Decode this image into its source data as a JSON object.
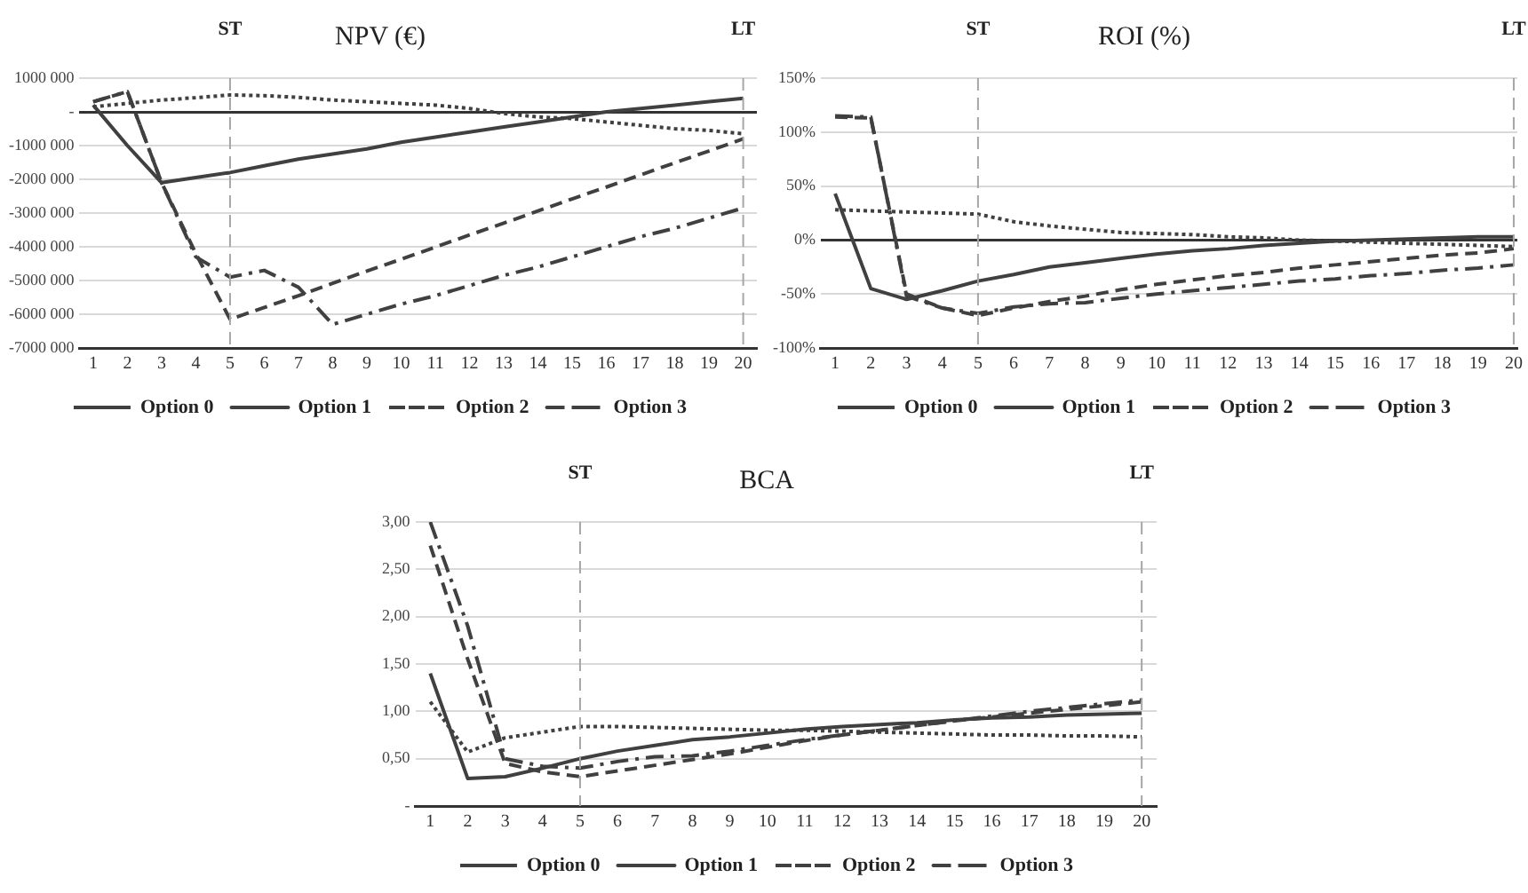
{
  "chart_data": [
    {
      "type": "line",
      "title": "NPV (€)",
      "x": [
        1,
        2,
        3,
        4,
        5,
        6,
        7,
        8,
        9,
        10,
        11,
        12,
        13,
        14,
        15,
        16,
        17,
        18,
        19,
        20
      ],
      "xlim": [
        0.6,
        20.4
      ],
      "xticks": [
        1,
        2,
        3,
        4,
        5,
        6,
        7,
        8,
        9,
        10,
        11,
        12,
        13,
        14,
        15,
        16,
        17,
        18,
        19,
        20
      ],
      "ylim": [
        -7000000,
        1000000
      ],
      "yticks": [
        {
          "value": 1000000,
          "label": "1000 000"
        },
        {
          "value": 0,
          "label": "-"
        },
        {
          "value": -1000000,
          "label": "-1000 000"
        },
        {
          "value": -2000000,
          "label": "-2000 000"
        },
        {
          "value": -3000000,
          "label": "-3000 000"
        },
        {
          "value": -4000000,
          "label": "-4000 000"
        },
        {
          "value": -5000000,
          "label": "-5000 000"
        },
        {
          "value": -6000000,
          "label": "-6000 000"
        },
        {
          "value": -7000000,
          "label": "-7000 000"
        }
      ],
      "grid": "y",
      "legend": "bottom",
      "ref_lines": [
        {
          "axis": "x",
          "value": 5,
          "label": "ST",
          "line_style": "dashed",
          "color": "#a6a6a6"
        },
        {
          "axis": "x",
          "value": 20,
          "label": "LT",
          "line_style": "dashed",
          "color": "#a6a6a6"
        }
      ],
      "series": [
        {
          "name": "Option 0",
          "color": "#404040",
          "line_style": "dotted",
          "values": [
            150000,
            250000,
            350000,
            420000,
            500000,
            480000,
            430000,
            350000,
            300000,
            250000,
            200000,
            100000,
            -50000,
            -150000,
            -200000,
            -300000,
            -400000,
            -500000,
            -550000,
            -650000
          ]
        },
        {
          "name": "Option 1",
          "color": "#404040",
          "line_style": "solid",
          "values": [
            200000,
            -1000000,
            -2100000,
            -1950000,
            -1800000,
            -1600000,
            -1400000,
            -1250000,
            -1100000,
            -900000,
            -750000,
            -600000,
            -450000,
            -300000,
            -150000,
            0,
            100000,
            200000,
            300000,
            400000
          ]
        },
        {
          "name": "Option 2",
          "color": "#404040",
          "line_style": "dashed",
          "values": [
            300000,
            600000,
            -2100000,
            -4200000,
            -6150000,
            -5800000,
            -5450000,
            -5080000,
            -4720000,
            -4370000,
            -4010000,
            -3650000,
            -3300000,
            -2940000,
            -2580000,
            -2230000,
            -1870000,
            -1510000,
            -1160000,
            -800000
          ]
        },
        {
          "name": "Option 3",
          "color": "#404040",
          "line_style": "dashdot",
          "values": [
            300000,
            600000,
            -2100000,
            -4300000,
            -4900000,
            -4700000,
            -5200000,
            -6300000,
            -6000000,
            -5700000,
            -5450000,
            -5150000,
            -4850000,
            -4600000,
            -4300000,
            -4000000,
            -3700000,
            -3450000,
            -3150000,
            -2850000
          ]
        }
      ]
    },
    {
      "type": "line",
      "title": "ROI (%)",
      "x": [
        1,
        2,
        3,
        4,
        5,
        6,
        7,
        8,
        9,
        10,
        11,
        12,
        13,
        14,
        15,
        16,
        17,
        18,
        19,
        20
      ],
      "xlim": [
        0.6,
        20.1
      ],
      "xticks": [
        1,
        2,
        3,
        4,
        5,
        6,
        7,
        8,
        9,
        10,
        11,
        12,
        13,
        14,
        15,
        16,
        17,
        18,
        19,
        20
      ],
      "ylim": [
        -100,
        150
      ],
      "yticks": [
        {
          "value": 150,
          "label": "150%"
        },
        {
          "value": 100,
          "label": "100%"
        },
        {
          "value": 50,
          "label": "50%"
        },
        {
          "value": 0,
          "label": "0%"
        },
        {
          "value": -50,
          "label": "-50%"
        },
        {
          "value": -100,
          "label": "-100%"
        }
      ],
      "grid": "y",
      "legend": "bottom",
      "ref_lines": [
        {
          "axis": "x",
          "value": 5,
          "label": "ST",
          "line_style": "dashed",
          "color": "#a6a6a6"
        },
        {
          "axis": "x",
          "value": 20,
          "label": "LT",
          "line_style": "dashed",
          "color": "#a6a6a6"
        }
      ],
      "series": [
        {
          "name": "Option 0",
          "color": "#404040",
          "line_style": "dotted",
          "values": [
            28,
            27,
            26,
            25,
            24,
            17,
            13,
            10,
            7,
            6,
            5,
            3,
            2,
            0,
            -1,
            -2,
            -3,
            -4,
            -5,
            -6
          ]
        },
        {
          "name": "Option 1",
          "color": "#404040",
          "line_style": "solid",
          "values": [
            43,
            -45,
            -55,
            -47,
            -38,
            -32,
            -25,
            -21,
            -17,
            -13,
            -10,
            -8,
            -5,
            -3,
            -1,
            0,
            1,
            2,
            3,
            3
          ]
        },
        {
          "name": "Option 2",
          "color": "#404040",
          "line_style": "dashed",
          "values": [
            114,
            113,
            -50,
            -63,
            -70,
            -63,
            -57,
            -52,
            -46,
            -41,
            -37,
            -33,
            -30,
            -26,
            -23,
            -20,
            -17,
            -14,
            -12,
            -8
          ]
        },
        {
          "name": "Option 3",
          "color": "#404040",
          "line_style": "dashdot",
          "values": [
            115,
            114,
            -52,
            -63,
            -68,
            -62,
            -59,
            -58,
            -54,
            -50,
            -47,
            -44,
            -41,
            -38,
            -36,
            -33,
            -31,
            -28,
            -26,
            -23
          ]
        }
      ]
    },
    {
      "type": "line",
      "title": "BCA",
      "x": [
        1,
        2,
        3,
        4,
        5,
        6,
        7,
        8,
        9,
        10,
        11,
        12,
        13,
        14,
        15,
        16,
        17,
        18,
        19,
        20
      ],
      "xlim": [
        0.6,
        20.4
      ],
      "xticks": [
        1,
        2,
        3,
        4,
        5,
        6,
        7,
        8,
        9,
        10,
        11,
        12,
        13,
        14,
        15,
        16,
        17,
        18,
        19,
        20
      ],
      "ylim": [
        0,
        3
      ],
      "yticks": [
        {
          "value": 3,
          "label": "3,00"
        },
        {
          "value": 2.5,
          "label": "2,50"
        },
        {
          "value": 2,
          "label": "2,00"
        },
        {
          "value": 1.5,
          "label": "1,50"
        },
        {
          "value": 1,
          "label": "1,00"
        },
        {
          "value": 0.5,
          "label": "0,50"
        },
        {
          "value": 0,
          "label": "-"
        }
      ],
      "grid": "y",
      "legend": "bottom",
      "ref_lines": [
        {
          "axis": "x",
          "value": 5,
          "label": "ST",
          "line_style": "dashed",
          "color": "#a6a6a6"
        },
        {
          "axis": "x",
          "value": 20,
          "label": "LT",
          "line_style": "dashed",
          "color": "#a6a6a6"
        }
      ],
      "series": [
        {
          "name": "Option 0",
          "color": "#404040",
          "line_style": "dotted",
          "values": [
            1.1,
            0.57,
            0.72,
            0.78,
            0.84,
            0.84,
            0.83,
            0.82,
            0.81,
            0.8,
            0.8,
            0.79,
            0.78,
            0.77,
            0.76,
            0.75,
            0.75,
            0.74,
            0.74,
            0.73
          ]
        },
        {
          "name": "Option 1",
          "color": "#404040",
          "line_style": "solid",
          "values": [
            1.4,
            0.29,
            0.31,
            0.4,
            0.5,
            0.58,
            0.64,
            0.7,
            0.73,
            0.77,
            0.81,
            0.84,
            0.86,
            0.88,
            0.91,
            0.93,
            0.94,
            0.96,
            0.97,
            0.98
          ]
        },
        {
          "name": "Option 2",
          "color": "#404040",
          "line_style": "dashed",
          "values": [
            2.75,
            1.55,
            0.45,
            0.36,
            0.31,
            0.37,
            0.43,
            0.49,
            0.55,
            0.62,
            0.69,
            0.75,
            0.8,
            0.85,
            0.9,
            0.94,
            0.98,
            1.02,
            1.06,
            1.1
          ]
        },
        {
          "name": "Option 3",
          "color": "#404040",
          "line_style": "dashdot",
          "values": [
            3,
            1.9,
            0.5,
            0.42,
            0.4,
            0.47,
            0.52,
            0.53,
            0.58,
            0.64,
            0.7,
            0.75,
            0.8,
            0.85,
            0.9,
            0.95,
            1,
            1.04,
            1.08,
            1.12
          ]
        }
      ]
    }
  ]
}
